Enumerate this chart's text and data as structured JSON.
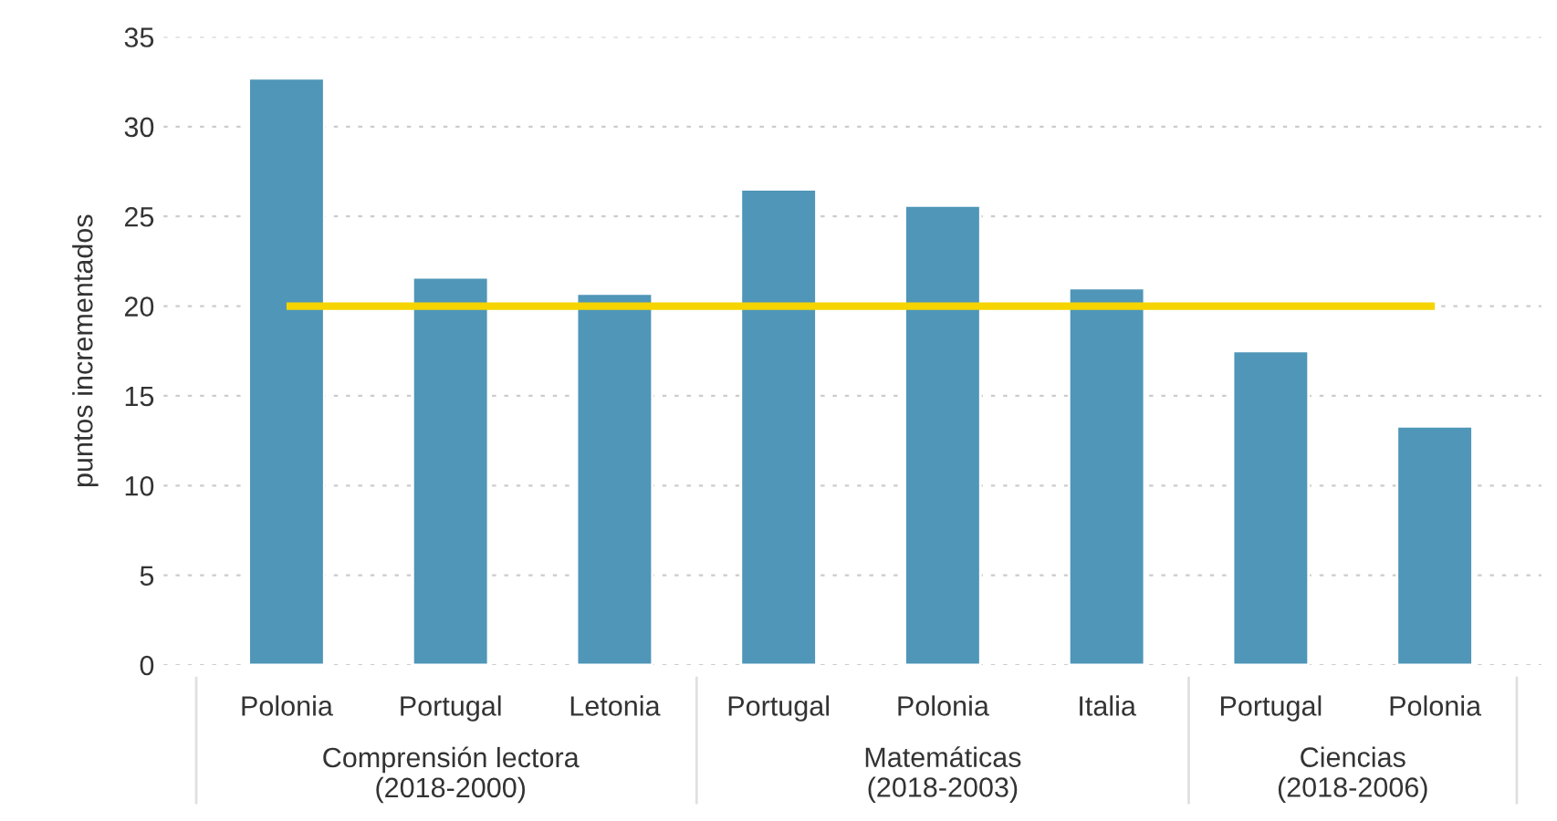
{
  "chart_data": {
    "type": "bar",
    "ylabel": "puntos incrementados",
    "categories": [
      "Polonia",
      "Portugal",
      "Letonia",
      "Portugal",
      "Polonia",
      "Italia",
      "Portugal",
      "Polonia"
    ],
    "values": [
      32.7,
      21.6,
      20.7,
      26.5,
      25.6,
      21.0,
      17.5,
      13.3
    ],
    "color": "#4f96b8",
    "ylim": [
      0,
      35
    ],
    "yticks": [
      0,
      5,
      10,
      15,
      20,
      25,
      30,
      35
    ],
    "grid": "y",
    "ref_lines": [
      {
        "axis": "y",
        "value": 20,
        "color": "#f5d400"
      }
    ],
    "annotations": [
      "Comprensión lectora\n(2018-2000)",
      "Matemáticas\n(2018-2003)",
      "Ciencias\n(2018-2006)"
    ]
  }
}
